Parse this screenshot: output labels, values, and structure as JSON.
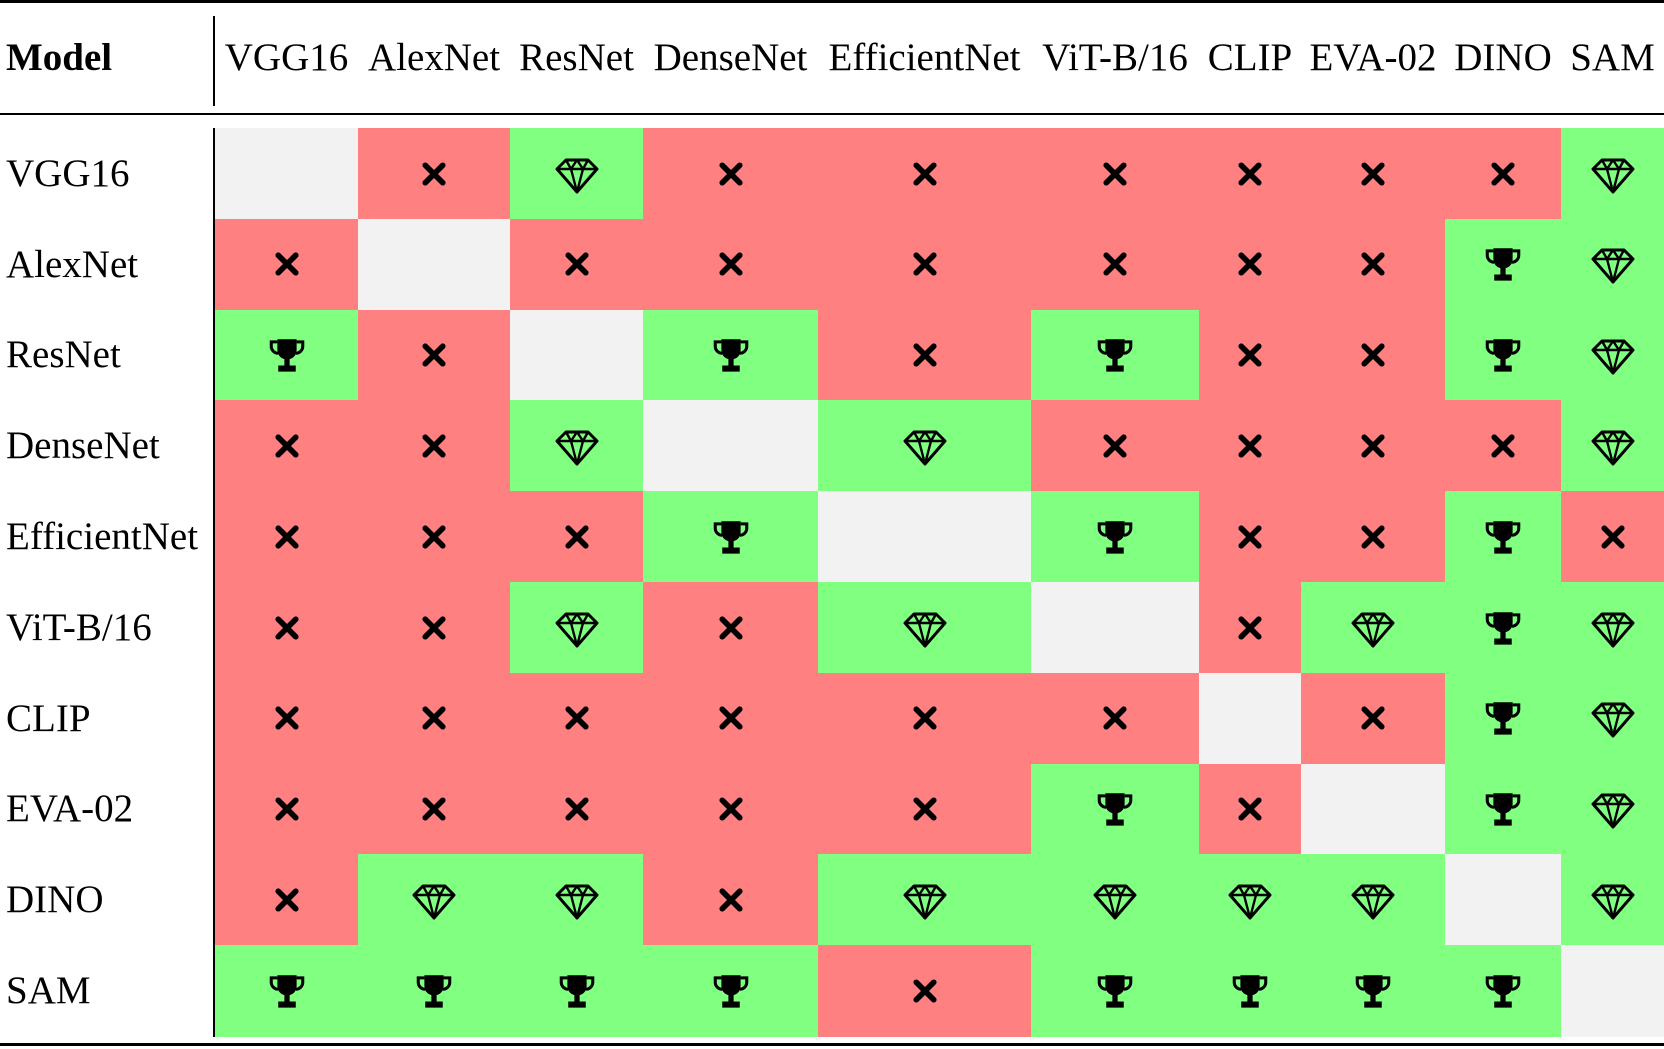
{
  "table": {
    "header_label": "Model",
    "columns": [
      "VGG16",
      "AlexNet",
      "ResNet",
      "DenseNet",
      "EfficientNet",
      "ViT-B/16",
      "CLIP",
      "EVA-02",
      "DINO",
      "SAM"
    ],
    "rows": [
      {
        "label": "VGG16",
        "cells": [
          "none",
          "cross",
          "diamond",
          "cross",
          "cross",
          "cross",
          "cross",
          "cross",
          "cross",
          "diamond"
        ]
      },
      {
        "label": "AlexNet",
        "cells": [
          "cross",
          "none",
          "cross",
          "cross",
          "cross",
          "cross",
          "cross",
          "cross",
          "trophy",
          "diamond"
        ]
      },
      {
        "label": "ResNet",
        "cells": [
          "trophy",
          "cross",
          "none",
          "trophy",
          "cross",
          "trophy",
          "cross",
          "cross",
          "trophy",
          "diamond"
        ]
      },
      {
        "label": "DenseNet",
        "cells": [
          "cross",
          "cross",
          "diamond",
          "none",
          "diamond",
          "cross",
          "cross",
          "cross",
          "cross",
          "diamond"
        ]
      },
      {
        "label": "EfficientNet",
        "cells": [
          "cross",
          "cross",
          "cross",
          "trophy",
          "none",
          "trophy",
          "cross",
          "cross",
          "trophy",
          "cross"
        ]
      },
      {
        "label": "ViT-B/16",
        "cells": [
          "cross",
          "cross",
          "diamond",
          "cross",
          "diamond",
          "none",
          "cross",
          "diamond",
          "trophy",
          "diamond"
        ]
      },
      {
        "label": "CLIP",
        "cells": [
          "cross",
          "cross",
          "cross",
          "cross",
          "cross",
          "cross",
          "none",
          "cross",
          "trophy",
          "diamond"
        ]
      },
      {
        "label": "EVA-02",
        "cells": [
          "cross",
          "cross",
          "cross",
          "cross",
          "cross",
          "trophy",
          "cross",
          "none",
          "trophy",
          "diamond"
        ]
      },
      {
        "label": "DINO",
        "cells": [
          "cross",
          "diamond",
          "diamond",
          "cross",
          "diamond",
          "diamond",
          "diamond",
          "diamond",
          "none",
          "diamond"
        ]
      },
      {
        "label": "SAM",
        "cells": [
          "trophy",
          "trophy",
          "trophy",
          "trophy",
          "cross",
          "trophy",
          "trophy",
          "trophy",
          "trophy",
          "none"
        ]
      }
    ]
  },
  "icons": {
    "cross": "close-icon",
    "trophy": "trophy-icon",
    "diamond": "diamond-icon"
  },
  "colors": {
    "cross": "#ff8080",
    "trophy": "#80ff80",
    "diamond": "#80ff80",
    "none": "#f2f2f2"
  }
}
